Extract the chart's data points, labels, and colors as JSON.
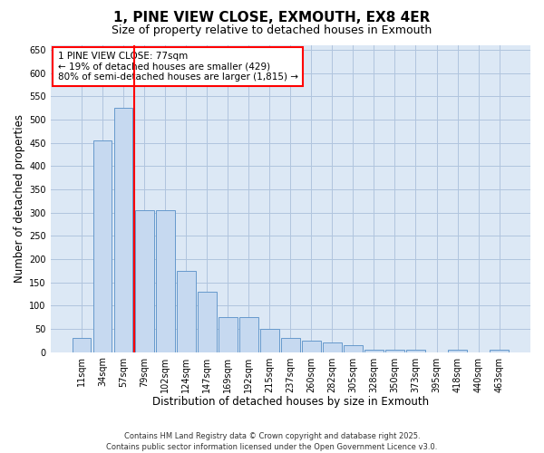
{
  "title": "1, PINE VIEW CLOSE, EXMOUTH, EX8 4ER",
  "subtitle": "Size of property relative to detached houses in Exmouth",
  "xlabel": "Distribution of detached houses by size in Exmouth",
  "ylabel": "Number of detached properties",
  "categories": [
    "11sqm",
    "34sqm",
    "57sqm",
    "79sqm",
    "102sqm",
    "124sqm",
    "147sqm",
    "169sqm",
    "192sqm",
    "215sqm",
    "237sqm",
    "260sqm",
    "282sqm",
    "305sqm",
    "328sqm",
    "350sqm",
    "373sqm",
    "395sqm",
    "418sqm",
    "440sqm",
    "463sqm"
  ],
  "values": [
    30,
    455,
    525,
    305,
    305,
    175,
    130,
    75,
    75,
    50,
    30,
    25,
    20,
    15,
    5,
    5,
    5,
    0,
    5,
    0,
    5
  ],
  "bar_color": "#c6d9f0",
  "bar_edge_color": "#6699cc",
  "vline_color": "red",
  "vline_x_index": 2,
  "annotation_text": "1 PINE VIEW CLOSE: 77sqm\n← 19% of detached houses are smaller (429)\n80% of semi-detached houses are larger (1,815) →",
  "annotation_box_color": "white",
  "annotation_box_edge_color": "red",
  "ylim_max": 660,
  "yticks": [
    0,
    50,
    100,
    150,
    200,
    250,
    300,
    350,
    400,
    450,
    500,
    550,
    600,
    650
  ],
  "grid_color": "#b0c4de",
  "background_color": "#dce8f5",
  "footer": "Contains HM Land Registry data © Crown copyright and database right 2025.\nContains public sector information licensed under the Open Government Licence v3.0.",
  "title_fontsize": 11,
  "subtitle_fontsize": 9,
  "xlabel_fontsize": 8.5,
  "ylabel_fontsize": 8.5,
  "tick_fontsize": 7,
  "annotation_fontsize": 7.5,
  "footer_fontsize": 6
}
